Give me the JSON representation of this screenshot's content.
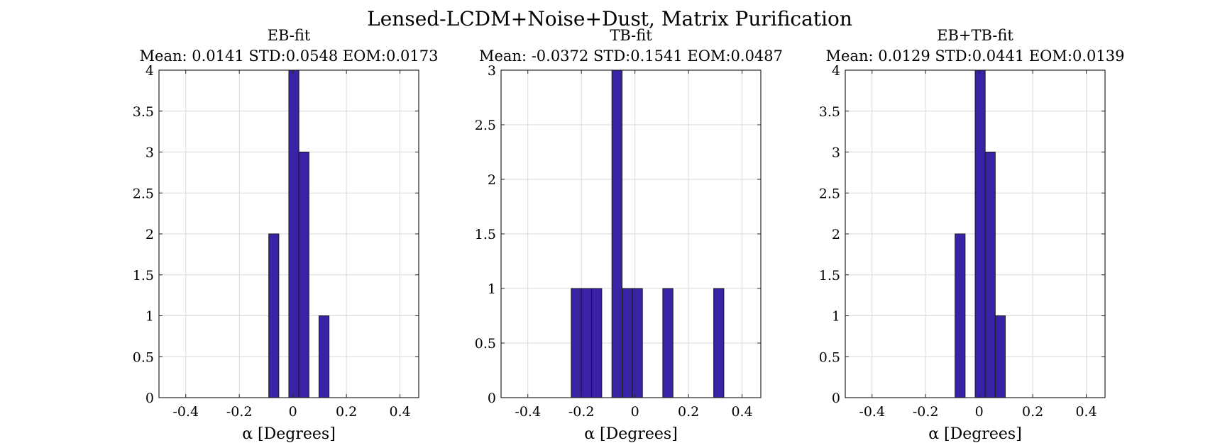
{
  "figure_title": "Lensed-LCDM+Noise+Dust, Matrix Purification",
  "bar_color": "#3a22a6",
  "chart_data": [
    {
      "type": "bar",
      "title": "EB-fit",
      "subtitle": "Mean: 0.0141 STD:0.0548 EOM:0.0173",
      "xlabel": "α [Degrees]",
      "ylabel": "",
      "xlim": [
        -0.5,
        0.47
      ],
      "ylim": [
        0,
        4
      ],
      "xticks": [
        -0.4,
        -0.2,
        0,
        0.2,
        0.4
      ],
      "xticklabels": [
        "-0.4",
        "-0.2",
        "0",
        "0.2",
        "0.4"
      ],
      "yticks": [
        0,
        0.5,
        1,
        1.5,
        2,
        2.5,
        3,
        3.5,
        4
      ],
      "yticklabels": [
        "0",
        "0.5",
        "1",
        "1.5",
        "2",
        "2.5",
        "3",
        "3.5",
        "4"
      ],
      "grid": true,
      "bins": [
        {
          "x0": -0.09,
          "x1": -0.0525,
          "count": 2
        },
        {
          "x0": -0.015,
          "x1": 0.0225,
          "count": 4
        },
        {
          "x0": 0.0225,
          "x1": 0.06,
          "count": 3
        },
        {
          "x0": 0.0975,
          "x1": 0.135,
          "count": 1
        }
      ]
    },
    {
      "type": "bar",
      "title": "TB-fit",
      "subtitle": "Mean: -0.0372 STD:0.1541 EOM:0.0487",
      "xlabel": "α [Degrees]",
      "ylabel": "",
      "xlim": [
        -0.5,
        0.47
      ],
      "ylim": [
        0,
        3
      ],
      "xticks": [
        -0.4,
        -0.2,
        0,
        0.2,
        0.4
      ],
      "xticklabels": [
        "-0.4",
        "-0.2",
        "0",
        "0.2",
        "0.4"
      ],
      "yticks": [
        0,
        0.5,
        1,
        1.5,
        2,
        2.5,
        3
      ],
      "yticklabels": [
        "0",
        "0.5",
        "1",
        "1.5",
        "2",
        "2.5",
        "3"
      ],
      "grid": true,
      "bins": [
        {
          "x0": -0.238,
          "x1": -0.2,
          "count": 1
        },
        {
          "x0": -0.2,
          "x1": -0.162,
          "count": 1
        },
        {
          "x0": -0.162,
          "x1": -0.124,
          "count": 1
        },
        {
          "x0": -0.086,
          "x1": -0.048,
          "count": 3
        },
        {
          "x0": -0.048,
          "x1": -0.01,
          "count": 1
        },
        {
          "x0": -0.01,
          "x1": 0.028,
          "count": 1
        },
        {
          "x0": 0.104,
          "x1": 0.142,
          "count": 1
        },
        {
          "x0": 0.294,
          "x1": 0.332,
          "count": 1
        }
      ]
    },
    {
      "type": "bar",
      "title": "EB+TB-fit",
      "subtitle": "Mean: 0.0129 STD:0.0441 EOM:0.0139",
      "xlabel": "α [Degrees]",
      "ylabel": "",
      "xlim": [
        -0.5,
        0.47
      ],
      "ylim": [
        0,
        4
      ],
      "xticks": [
        -0.4,
        -0.2,
        0,
        0.2,
        0.4
      ],
      "xticklabels": [
        "-0.4",
        "-0.2",
        "0",
        "0.2",
        "0.4"
      ],
      "yticks": [
        0,
        0.5,
        1,
        1.5,
        2,
        2.5,
        3,
        3.5,
        4
      ],
      "yticklabels": [
        "0",
        "0.5",
        "1",
        "1.5",
        "2",
        "2.5",
        "3",
        "3.5",
        "4"
      ],
      "grid": true,
      "bins": [
        {
          "x0": -0.09,
          "x1": -0.0525,
          "count": 2
        },
        {
          "x0": -0.015,
          "x1": 0.0225,
          "count": 4
        },
        {
          "x0": 0.0225,
          "x1": 0.06,
          "count": 3
        },
        {
          "x0": 0.06,
          "x1": 0.0975,
          "count": 1
        }
      ]
    }
  ]
}
